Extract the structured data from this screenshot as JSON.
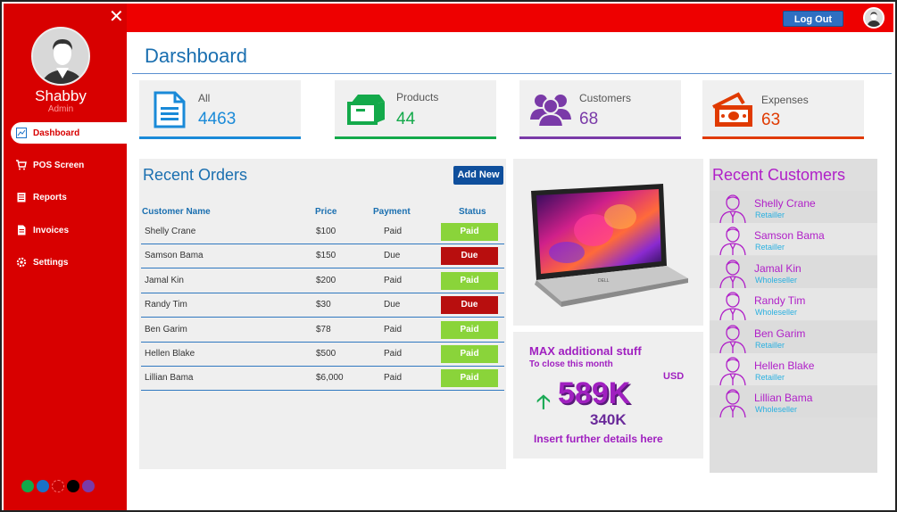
{
  "sidebar": {
    "close_label": "✕",
    "user_name": "Shabby",
    "user_role": "Admin",
    "items": [
      {
        "label": "Dashboard",
        "icon": "dashboard-icon",
        "active": true
      },
      {
        "label": "POS Screen",
        "icon": "cart-icon"
      },
      {
        "label": "Reports",
        "icon": "report-icon"
      },
      {
        "label": "Invoices",
        "icon": "invoice-icon"
      },
      {
        "label": "Settings",
        "icon": "gear-icon"
      }
    ],
    "theme_colors": [
      "#13a94a",
      "#1a72c8",
      "#c80000",
      "#000000",
      "#7a3aa8"
    ]
  },
  "header": {
    "logout_label": "Log Out"
  },
  "page": {
    "title": "Darshboard"
  },
  "stats": [
    {
      "label": "All",
      "value": "4463",
      "color": "#1a8ad8",
      "icon": "document-icon"
    },
    {
      "label": "Products",
      "value": "44",
      "color": "#13a94a",
      "icon": "box-icon"
    },
    {
      "label": "Customers",
      "value": "68",
      "color": "#7a3aa8",
      "icon": "people-icon"
    },
    {
      "label": "Expenses",
      "value": "63",
      "color": "#e03a00",
      "icon": "money-icon"
    }
  ],
  "orders": {
    "title": "Recent Orders",
    "add_new_label": "Add New",
    "headers": {
      "name": "Customer Name",
      "price": "Price",
      "payment": "Payment",
      "status": "Status"
    },
    "rows": [
      {
        "name": "Shelly Crane",
        "price": "$100",
        "payment": "Paid",
        "status": "Paid"
      },
      {
        "name": "Samson Bama",
        "price": "$150",
        "payment": "Due",
        "status": "Due"
      },
      {
        "name": "Jamal Kin",
        "price": "$200",
        "payment": "Paid",
        "status": "Paid"
      },
      {
        "name": "Randy Tim",
        "price": "$30",
        "payment": "Due",
        "status": "Due"
      },
      {
        "name": "Ben Garim",
        "price": "$78",
        "payment": "Paid",
        "status": "Paid"
      },
      {
        "name": "Hellen Blake",
        "price": "$500",
        "payment": "Paid",
        "status": "Paid"
      },
      {
        "name": "Lillian Bama",
        "price": "$6,000",
        "payment": "Paid",
        "status": "Paid"
      }
    ],
    "status_colors": {
      "Paid": "#8ad43a",
      "Due": "#b80e0e"
    }
  },
  "promo": {
    "laptop_brand": "DELL",
    "line1": "MAX additional stuff",
    "line2": "To close this month",
    "currency": "USD",
    "big_value": "589K",
    "small_value": "340K",
    "footer": "Insert further details here"
  },
  "customers": {
    "title": "Recent Customers",
    "items": [
      {
        "name": "Shelly Crane",
        "type": "Retailler"
      },
      {
        "name": "Samson Bama",
        "type": "Retailler"
      },
      {
        "name": "Jamal Kin",
        "type": "Wholeseller"
      },
      {
        "name": "Randy Tim",
        "type": "Wholeseller"
      },
      {
        "name": "Ben Garim",
        "type": "Retailler"
      },
      {
        "name": "Hellen Blake",
        "type": "Retailler"
      },
      {
        "name": "Lillian Bama",
        "type": "Wholeseller"
      }
    ]
  }
}
